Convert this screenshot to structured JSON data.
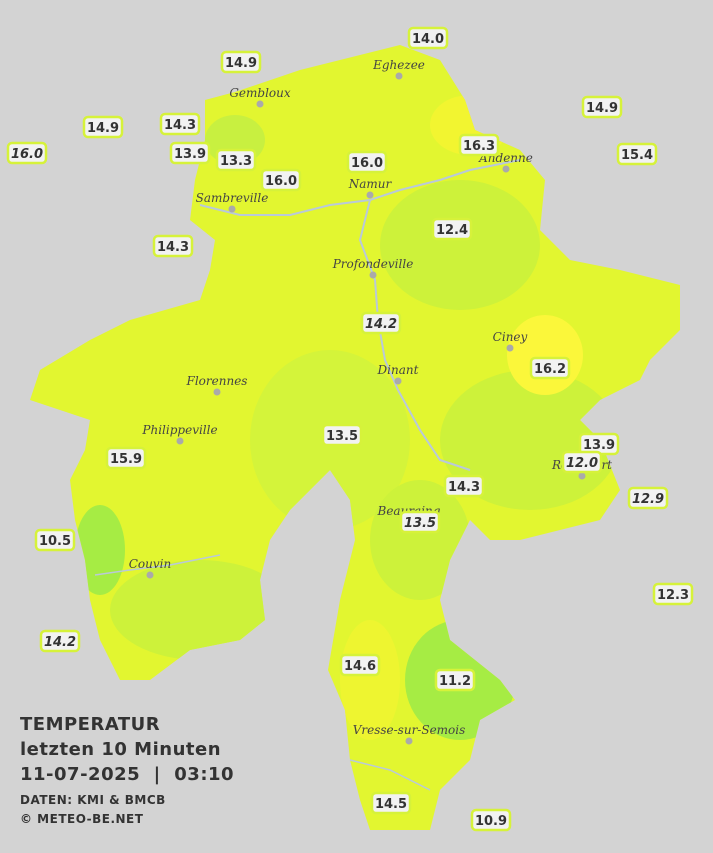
{
  "legend": {
    "title": "TEMPERATUR",
    "subtitle": "letzten 10 Minuten",
    "timestamp": "11-07-2025  |  03:10",
    "source": "DATEN: KMI & BMCB",
    "copyright": "© METEO-BE.NET"
  },
  "cities": [
    "Eghezee",
    "Gembloux",
    "Andenne",
    "Namur",
    "Sambreville",
    "Profondeville",
    "Ciney",
    "Dinant",
    "Florennes",
    "Philippeville",
    "Rochefort",
    "Beauraing",
    "Couvin",
    "Vresse-sur-Semois"
  ],
  "stations": [
    {
      "label": "14.0",
      "italic": false
    },
    {
      "label": "14.9",
      "italic": false
    },
    {
      "label": "14.9",
      "italic": false
    },
    {
      "label": "14.9",
      "italic": false
    },
    {
      "label": "14.3",
      "italic": false
    },
    {
      "label": "16.0",
      "italic": true
    },
    {
      "label": "13.9",
      "italic": false
    },
    {
      "label": "13.3",
      "italic": false
    },
    {
      "label": "16.3",
      "italic": false
    },
    {
      "label": "15.4",
      "italic": false
    },
    {
      "label": "16.0",
      "italic": false
    },
    {
      "label": "16.0",
      "italic": false
    },
    {
      "label": "14.3",
      "italic": false
    },
    {
      "label": "12.4",
      "italic": false
    },
    {
      "label": "14.2",
      "italic": true
    },
    {
      "label": "16.2",
      "italic": false
    },
    {
      "label": "13.5",
      "italic": false
    },
    {
      "label": "13.9",
      "italic": false
    },
    {
      "label": "12.0",
      "italic": true
    },
    {
      "label": "15.9",
      "italic": false
    },
    {
      "label": "14.3",
      "italic": false
    },
    {
      "label": "12.9",
      "italic": true
    },
    {
      "label": "13.5",
      "italic": true
    },
    {
      "label": "10.5",
      "italic": false
    },
    {
      "label": "12.3",
      "italic": false
    },
    {
      "label": "14.2",
      "italic": true
    },
    {
      "label": "14.6",
      "italic": false
    },
    {
      "label": "11.2",
      "italic": false
    },
    {
      "label": "14.5",
      "italic": false
    },
    {
      "label": "10.9",
      "italic": false
    }
  ]
}
